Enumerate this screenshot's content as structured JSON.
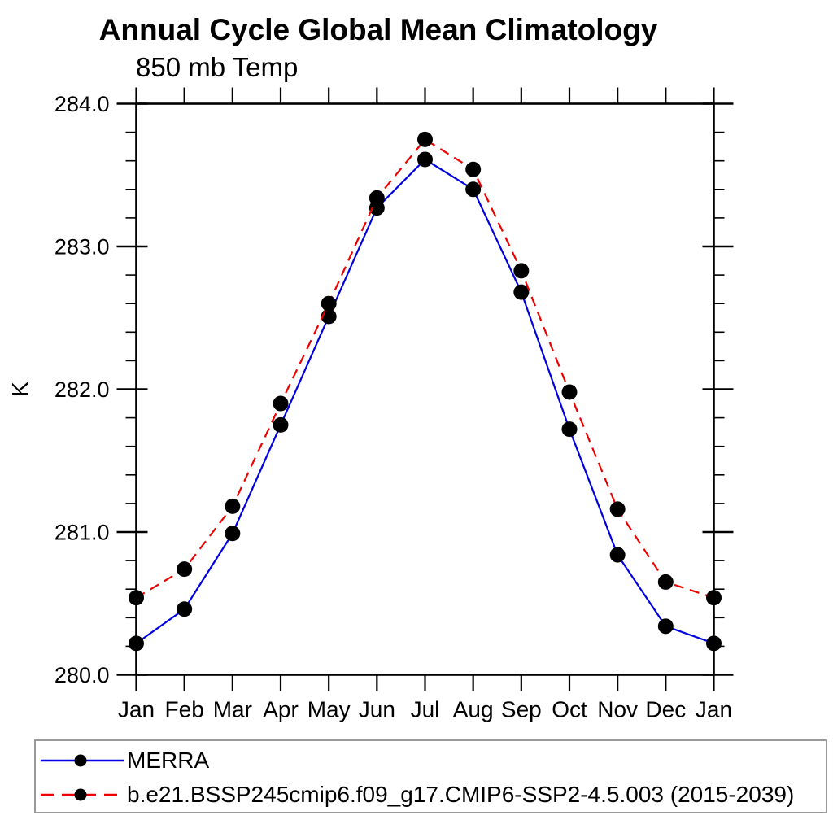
{
  "title": "Annual Cycle Global Mean Climatology",
  "subtitle": "850 mb Temp",
  "chart_data": {
    "type": "line",
    "categories": [
      "Jan",
      "Feb",
      "Mar",
      "Apr",
      "May",
      "Jun",
      "Jul",
      "Aug",
      "Sep",
      "Oct",
      "Nov",
      "Dec",
      "Jan"
    ],
    "xlabel": "",
    "ylabel": "K",
    "ylim": [
      280.0,
      284.0
    ],
    "ytick_major_step": 1.0,
    "ytick_minor_step": 0.2,
    "ytick_labels": [
      "280.0",
      "281.0",
      "282.0",
      "283.0",
      "284.0"
    ],
    "grid": false,
    "legend_position": "bottom-left-box",
    "marker": "filled-circle",
    "marker_color": "#000000",
    "axis_color": "#000000",
    "series": [
      {
        "name": "MERRA",
        "color": "#0000e0",
        "line_style": "solid",
        "values": [
          280.22,
          280.46,
          280.99,
          281.75,
          282.51,
          283.27,
          283.61,
          283.4,
          282.68,
          281.72,
          280.84,
          280.34,
          280.22
        ]
      },
      {
        "name": "b.e21.BSSP245cmip6.f09_g17.CMIP6-SSP2-4.5.003 (2015-2039)",
        "color": "#ee0000",
        "line_style": "dashed",
        "values": [
          280.54,
          280.74,
          281.18,
          281.9,
          282.6,
          283.34,
          283.75,
          283.54,
          282.83,
          281.98,
          281.16,
          280.65,
          280.54
        ]
      }
    ]
  }
}
